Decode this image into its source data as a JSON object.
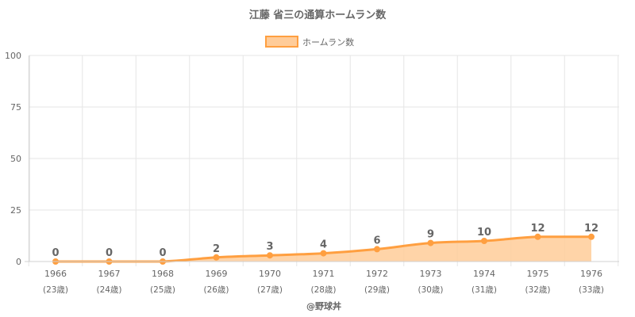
{
  "chart_data": {
    "type": "line",
    "title": "江藤 省三の通算ホームラン数",
    "legend": {
      "label": "ホームラン数",
      "position": "top"
    },
    "x": [
      "1966",
      "1967",
      "1968",
      "1969",
      "1970",
      "1971",
      "1972",
      "1973",
      "1974",
      "1975",
      "1976"
    ],
    "x_sub": [
      "(23歳)",
      "(24歳)",
      "(25歳)",
      "(26歳)",
      "(27歳)",
      "(28歳)",
      "(29歳)",
      "(30歳)",
      "(31歳)",
      "(32歳)",
      "(33歳)"
    ],
    "series": [
      {
        "name": "ホームラン数",
        "values": [
          0,
          0,
          0,
          2,
          3,
          4,
          6,
          9,
          10,
          12,
          12
        ]
      }
    ],
    "ylim": [
      0,
      100
    ],
    "yticks": [
      0,
      25,
      50,
      75,
      100
    ],
    "grid": true,
    "fill": true,
    "data_labels": true,
    "colors": {
      "line": "#ff9f40",
      "fill": "#ffcc99",
      "grid": "#e6e6e6",
      "text": "#666666"
    }
  },
  "credit": "@野球丼"
}
